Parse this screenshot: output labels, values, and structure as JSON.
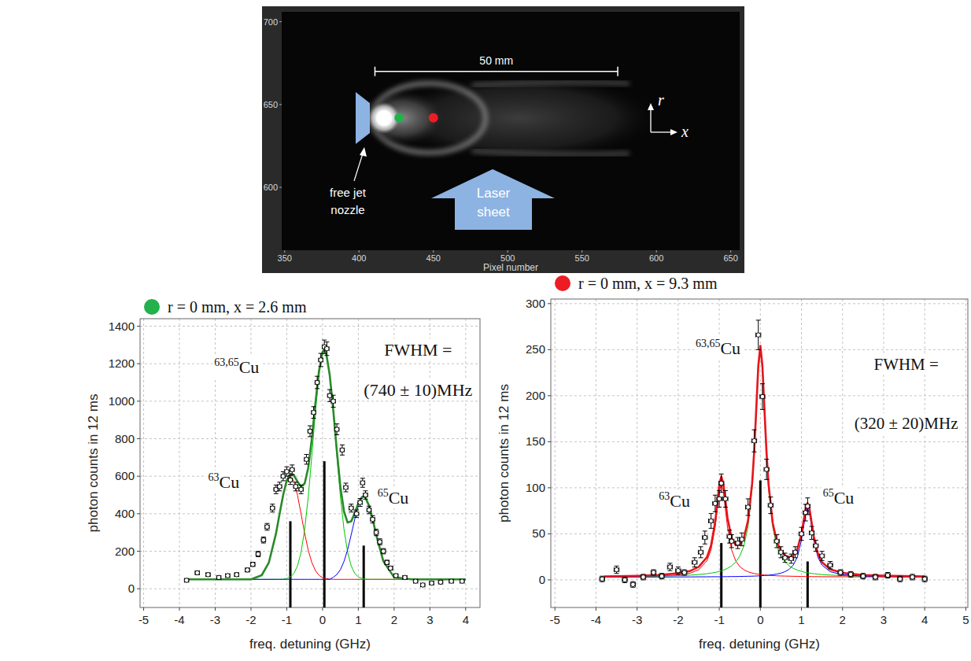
{
  "chart_data": [
    {
      "type": "image",
      "x_label": "Pixel number",
      "xlim": [
        348,
        656
      ],
      "xticks": [
        350,
        400,
        450,
        500,
        550,
        600,
        650
      ],
      "ylim": [
        562,
        706
      ],
      "yticks": [
        600,
        650,
        700
      ],
      "markers": [
        {
          "x": 427,
          "y": 642,
          "color": "#22b14c"
        },
        {
          "x": 450,
          "y": 642,
          "color": "#ed1c24"
        }
      ],
      "scale_bar": {
        "label": "50 mm",
        "x": [
          410.7,
          574
        ],
        "y": 670
      },
      "annotations": [
        {
          "text": "free jet nozzle"
        },
        {
          "text": "Laser sheet"
        }
      ],
      "direction_labels": [
        "r",
        "x"
      ]
    },
    {
      "type": "scatter",
      "title": "r = 0 mm, x = 2.6 mm",
      "x_label": "freq. detuning  (GHz)",
      "y_label": "photon counts in 12 ms",
      "xlim": [
        -5.1,
        4.4
      ],
      "xticks": [
        -5,
        -4,
        -3,
        -2,
        -1,
        0,
        1,
        2,
        3,
        4
      ],
      "ylim": [
        -100,
        1440
      ],
      "yticks": [
        0,
        200,
        400,
        600,
        800,
        1000,
        1200,
        1400
      ],
      "grid": true,
      "curve_x": [
        -3.8,
        -3.0,
        -2.5,
        -2.0,
        -1.7,
        -1.5,
        -1.3,
        -1.2,
        -1.1,
        -1.0,
        -0.9,
        -0.8,
        -0.7,
        -0.6,
        -0.5,
        -0.4,
        -0.3,
        -0.2,
        -0.1,
        0,
        0.05,
        0.1,
        0.2,
        0.3,
        0.4,
        0.5,
        0.6,
        0.7,
        0.8,
        0.9,
        1.0,
        1.1,
        1.15,
        1.2,
        1.3,
        1.4,
        1.5,
        1.7,
        2.0,
        2.5,
        3.0,
        4.0
      ],
      "series": [
        {
          "type": "bar",
          "color": "#000000",
          "x": [
            -0.9,
            0.05,
            1.15
          ],
          "values": [
            360,
            680,
            230
          ]
        },
        {
          "type": "line",
          "color": "#ff0000",
          "line_style": "thin",
          "values": [
            50,
            50,
            50,
            50,
            72,
            140,
            295,
            399,
            499,
            573,
            600,
            573,
            499,
            399,
            295,
            206,
            140,
            97,
            72,
            59,
            56,
            54,
            51,
            50,
            50,
            50,
            50,
            50,
            50,
            50,
            50,
            50,
            50,
            50,
            50,
            50,
            50,
            50,
            50,
            50,
            50,
            50
          ]
        },
        {
          "type": "line",
          "color": "#00c800",
          "line_style": "thin",
          "values": [
            50,
            50,
            50,
            50,
            50,
            50,
            50,
            50,
            51,
            55,
            63,
            82,
            122,
            195,
            316,
            489,
            708,
            941,
            1139,
            1254,
            1270,
            1254,
            1139,
            941,
            708,
            489,
            316,
            195,
            122,
            82,
            63,
            55,
            53,
            51,
            50,
            50,
            50,
            50,
            50,
            50,
            50,
            50
          ]
        },
        {
          "type": "line",
          "color": "#0000ff",
          "line_style": "thin",
          "values": [
            50,
            50,
            50,
            50,
            50,
            50,
            50,
            50,
            50,
            50,
            50,
            50,
            50,
            50,
            50,
            50,
            50,
            50,
            50,
            50,
            50,
            50,
            50,
            61,
            76,
            102,
            146,
            208,
            287,
            371,
            443,
            484,
            490,
            484,
            443,
            371,
            287,
            146,
            61,
            50,
            50,
            50
          ]
        },
        {
          "type": "line",
          "color": "#2a8a2a",
          "line_style": "thick",
          "values": [
            50,
            50,
            50,
            50,
            72,
            140,
            295,
            400,
            500,
            578,
            613,
            605,
            571,
            544,
            561,
            645,
            798,
            988,
            1161,
            1263,
            1276,
            1258,
            1140,
            952,
            734,
            541,
            412,
            353,
            359,
            403,
            456,
            489,
            493,
            485,
            443,
            371,
            287,
            146,
            61,
            50,
            50,
            50
          ]
        },
        {
          "type": "scatter",
          "color": "#000000",
          "marker": "circle",
          "x": [
            -3.8,
            -3.5,
            -3.2,
            -2.9,
            -2.65,
            -2.4,
            -2.1,
            -1.95,
            -1.8,
            -1.65,
            -1.55,
            -1.4,
            -1.3,
            -1.2,
            -1.1,
            -1.0,
            -0.9,
            -0.85,
            -0.75,
            -0.6,
            -0.45,
            -0.35,
            -0.25,
            -0.15,
            -0.05,
            0.05,
            0.12,
            0.2,
            0.3,
            0.4,
            0.55,
            0.65,
            0.8,
            0.95,
            1.05,
            1.12,
            1.2,
            1.3,
            1.4,
            1.5,
            1.6,
            1.7,
            1.8,
            1.9,
            2.05,
            2.3,
            2.6,
            2.8,
            3.05,
            3.3,
            3.6,
            3.9
          ],
          "values": [
            45,
            85,
            75,
            60,
            70,
            75,
            100,
            130,
            185,
            260,
            330,
            430,
            530,
            545,
            600,
            625,
            580,
            635,
            545,
            530,
            690,
            840,
            940,
            1100,
            1220,
            1290,
            1280,
            1030,
            1000,
            850,
            740,
            540,
            430,
            400,
            460,
            565,
            500,
            420,
            370,
            300,
            250,
            200,
            140,
            110,
            70,
            60,
            40,
            20,
            30,
            35,
            40,
            40
          ],
          "y_errors": [
            7,
            9,
            9,
            8,
            8,
            9,
            10,
            11,
            14,
            16,
            18,
            21,
            23,
            23,
            24,
            25,
            24,
            25,
            23,
            23,
            26,
            29,
            31,
            33,
            35,
            36,
            36,
            32,
            32,
            29,
            27,
            23,
            21,
            20,
            21,
            24,
            22,
            20,
            19,
            17,
            16,
            14,
            12,
            10,
            8,
            8,
            6,
            4,
            5,
            6,
            6,
            6
          ],
          "x_error": 0.06
        }
      ],
      "peak_labels": [
        {
          "isotope": "63,65",
          "element": "Cu",
          "x": -2.4,
          "y": 1150
        },
        {
          "isotope": "63",
          "element": "Cu",
          "x": -2.76,
          "y": 538
        },
        {
          "isotope": "65",
          "element": "Cu",
          "x": 1.97,
          "y": 454
        }
      ],
      "fwhm_label": {
        "lines": [
          "FWHM =",
          "(740 ± 10)MHz"
        ],
        "x": 2.67,
        "y": [
          1244,
          1030
        ]
      }
    },
    {
      "type": "scatter",
      "title": "r = 0 mm, x = 9.3 mm",
      "x_label": "freq. detuning  (GHz)",
      "y_label": "photon counts in 12 ms",
      "xlim": [
        -5.1,
        5.05
      ],
      "xticks": [
        -5,
        -4,
        -3,
        -2,
        -1,
        0,
        1,
        2,
        3,
        4,
        5
      ],
      "ylim": [
        -30,
        305
      ],
      "yticks": [
        0,
        50,
        100,
        150,
        200,
        250,
        300
      ],
      "grid": true,
      "curve_x": [
        -3.8,
        -3.0,
        -2.5,
        -2.0,
        -1.7,
        -1.5,
        -1.3,
        -1.2,
        -1.1,
        -1.05,
        -1.0,
        -0.95,
        -0.9,
        -0.85,
        -0.8,
        -0.7,
        -0.6,
        -0.5,
        -0.4,
        -0.3,
        -0.2,
        -0.15,
        -0.1,
        -0.05,
        0,
        0.05,
        0.1,
        0.15,
        0.2,
        0.3,
        0.4,
        0.5,
        0.6,
        0.7,
        0.8,
        0.9,
        1.0,
        1.05,
        1.1,
        1.15,
        1.2,
        1.25,
        1.3,
        1.4,
        1.5,
        1.7,
        2.0,
        2.5,
        3.0,
        4.0
      ],
      "series": [
        {
          "type": "bar",
          "color": "#000000",
          "x": [
            -0.95,
            0,
            1.15
          ],
          "values": [
            40,
            108,
            20
          ]
        },
        {
          "type": "line",
          "color": "#ff0000",
          "line_style": "thin",
          "values": [
            3.3,
            3.6,
            4.1,
            5.3,
            7.4,
            11.0,
            20.6,
            32.7,
            57.3,
            76.4,
            95.9,
            105,
            95.9,
            76.4,
            57.3,
            32.7,
            20.6,
            14.4,
            11.0,
            8.8,
            7.4,
            6.9,
            6.5,
            6.1,
            5.8,
            5.6,
            5.3,
            5.1,
            4.9,
            4.7,
            4.4,
            4.2,
            4.1,
            4.0,
            3.9,
            3.8,
            3.7,
            3.7,
            3.6,
            3.6,
            3.6,
            3.6,
            3.5,
            3.5,
            3.4,
            3.4,
            3.4,
            3.3,
            3.2,
            3.2
          ]
        },
        {
          "type": "line",
          "color": "#00c800",
          "line_style": "thin",
          "values": [
            3.4,
            3.7,
            4.0,
            4.6,
            5.2,
            5.8,
            6.7,
            7.3,
            8.1,
            8.6,
            9.2,
            9.8,
            10.6,
            11.5,
            12.5,
            15.3,
            19.4,
            25.9,
            37.1,
            57.6,
            99.5,
            134.4,
            180.6,
            228,
            250,
            228,
            180.6,
            134.4,
            99.5,
            57.6,
            37.1,
            25.9,
            19.4,
            15.3,
            12.5,
            10.6,
            9.2,
            8.6,
            8.1,
            7.7,
            7.3,
            7.0,
            6.7,
            6.2,
            5.8,
            5.2,
            4.6,
            4.0,
            3.7,
            3.4
          ]
        },
        {
          "type": "line",
          "color": "#0000ff",
          "line_style": "thin",
          "values": [
            3.1,
            3.1,
            3.1,
            3.2,
            3.2,
            3.3,
            3.3,
            3.4,
            3.4,
            3.4,
            3.4,
            3.4,
            3.5,
            3.5,
            3.5,
            3.6,
            3.6,
            3.7,
            3.8,
            3.9,
            4.0,
            4.1,
            4.2,
            4.3,
            4.4,
            4.6,
            4.7,
            4.9,
            5.1,
            5.6,
            6.3,
            7.3,
            8.9,
            11.4,
            16,
            24.8,
            42.9,
            56.9,
            71.3,
            78,
            71.3,
            56.9,
            42.9,
            24.8,
            16,
            8.9,
            5.6,
            4.0,
            3.6,
            3.3
          ]
        },
        {
          "type": "line",
          "color": "#e8141c",
          "line_style": "thick",
          "values": [
            3.8,
            4.4,
            5.2,
            7.1,
            9.8,
            14.1,
            24.6,
            37.4,
            62.8,
            82.4,
            102.5,
            112.2,
            104,
            85.4,
            67.3,
            45.6,
            37.6,
            38,
            45.9,
            64.3,
            104.9,
            139.4,
            185.3,
            232.4,
            254.2,
            232.2,
            184.6,
            138.4,
            103.5,
            61.9,
            41.8,
            31.4,
            26.4,
            24.6,
            26.4,
            33.2,
            49.8,
            63.2,
            77,
            83.3,
            76.2,
            61.5,
            47.1,
            28.5,
            19.2,
            11.5,
            7.6,
            5.3,
            4.5,
            3.8
          ]
        },
        {
          "type": "scatter",
          "color": "#000000",
          "marker": "circle",
          "x": [
            -3.85,
            -3.5,
            -3.3,
            -3.1,
            -2.85,
            -2.6,
            -2.4,
            -2.2,
            -2.0,
            -1.85,
            -1.6,
            -1.45,
            -1.35,
            -1.2,
            -1.1,
            -1.0,
            -0.95,
            -0.85,
            -0.75,
            -0.7,
            -0.55,
            -0.45,
            -0.3,
            -0.15,
            -0.05,
            0.05,
            0.15,
            0.25,
            0.4,
            0.5,
            0.6,
            0.75,
            0.85,
            1.0,
            1.1,
            1.15,
            1.25,
            1.35,
            1.5,
            1.7,
            1.95,
            2.2,
            2.5,
            2.8,
            3.1,
            3.4,
            3.7,
            4.0
          ],
          "values": [
            1,
            11,
            0,
            -5,
            3,
            8,
            4,
            14,
            10,
            8,
            19,
            30,
            46,
            64,
            83,
            88,
            105,
            88,
            47,
            42,
            40,
            44,
            79,
            151,
            266,
            199,
            120,
            81,
            42,
            30,
            24,
            23,
            30,
            50,
            73,
            80,
            51,
            37,
            26,
            16,
            8,
            6,
            4,
            3,
            5,
            1,
            3,
            1
          ],
          "y_errors": [
            3,
            4,
            3,
            3,
            3,
            3,
            3,
            4,
            4,
            3,
            5,
            6,
            7,
            8,
            9,
            9,
            10,
            9,
            7,
            7,
            6,
            7,
            9,
            12,
            16,
            14,
            11,
            9,
            7,
            6,
            5,
            5,
            6,
            7,
            9,
            9,
            7,
            6,
            5,
            4,
            3,
            3,
            3,
            3,
            3,
            3,
            3,
            3
          ],
          "x_error": 0.06
        }
      ],
      "peak_labels": [
        {
          "isotope": "63,65",
          "element": "Cu",
          "x": -1.03,
          "y": 245
        },
        {
          "isotope": "63",
          "element": "Cu",
          "x": -2.09,
          "y": 79
        },
        {
          "isotope": "65",
          "element": "Cu",
          "x": 1.9,
          "y": 83
        }
      ],
      "fwhm_label": {
        "lines": [
          "FWHM =",
          "(320 ± 20)MHz"
        ],
        "x": 3.55,
        "y": [
          228,
          164
        ]
      }
    }
  ]
}
